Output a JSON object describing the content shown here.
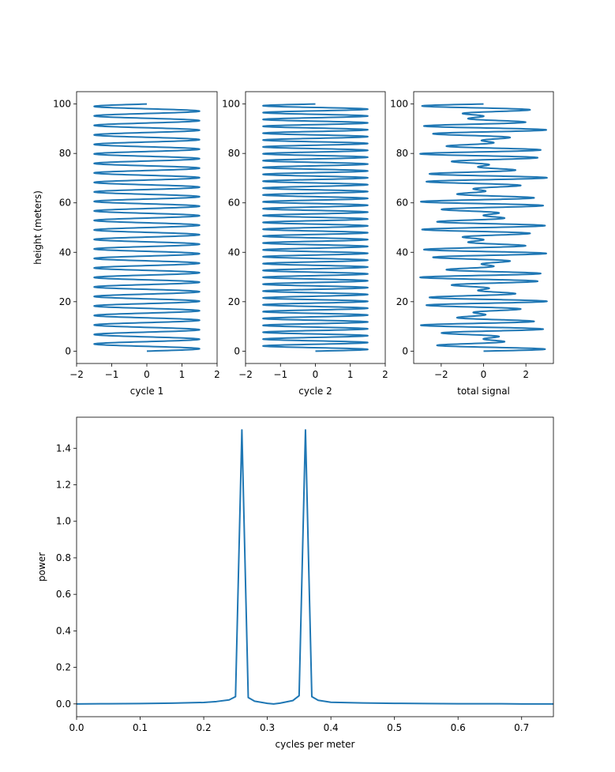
{
  "colors": {
    "line": "#1f77b4",
    "axes": "#000000",
    "background": "#ffffff"
  },
  "chart_data": [
    {
      "type": "line",
      "orientation": "vertical",
      "xlabel": "cycle 1",
      "ylabel": "height (meters)",
      "xlim": [
        -2,
        2
      ],
      "ylim": [
        -5,
        105
      ],
      "xticks": [
        -2,
        -1,
        0,
        1,
        2
      ],
      "yticks": [
        0,
        20,
        40,
        60,
        80,
        100
      ],
      "signal": {
        "amplitude": 1.5,
        "frequency_cycles_per_meter": 0.26,
        "phase": "sine"
      },
      "height_range": [
        0,
        100
      ]
    },
    {
      "type": "line",
      "orientation": "vertical",
      "xlabel": "cycle 2",
      "ylabel": "",
      "xlim": [
        -2,
        2
      ],
      "ylim": [
        -5,
        105
      ],
      "xticks": [
        -2,
        -1,
        0,
        1,
        2
      ],
      "yticks": [
        0,
        20,
        40,
        60,
        80,
        100
      ],
      "signal": {
        "amplitude": 1.5,
        "frequency_cycles_per_meter": 0.36,
        "phase": "sine"
      },
      "height_range": [
        0,
        100
      ]
    },
    {
      "type": "line",
      "orientation": "vertical",
      "xlabel": "total signal",
      "ylabel": "",
      "xlim": [
        -3.3,
        3.3
      ],
      "ylim": [
        -5,
        105
      ],
      "xticks": [
        -2,
        0,
        2
      ],
      "yticks": [
        0,
        20,
        40,
        60,
        80,
        100
      ],
      "signal": {
        "components": [
          0.26,
          0.36
        ],
        "amplitude": 1.5
      },
      "height_range": [
        0,
        100
      ]
    },
    {
      "type": "line",
      "xlabel": "cycles per meter",
      "ylabel": "power",
      "xlim": [
        0,
        0.75
      ],
      "ylim": [
        -0.07,
        1.57
      ],
      "xticks": [
        0.0,
        0.1,
        0.2,
        0.3,
        0.4,
        0.5,
        0.6,
        0.7
      ],
      "yticks": [
        0.0,
        0.2,
        0.4,
        0.6,
        0.8,
        1.0,
        1.2,
        1.4
      ],
      "x": [
        0.0,
        0.05,
        0.1,
        0.15,
        0.2,
        0.22,
        0.24,
        0.25,
        0.26,
        0.27,
        0.28,
        0.3,
        0.31,
        0.32,
        0.34,
        0.35,
        0.36,
        0.37,
        0.38,
        0.4,
        0.45,
        0.5,
        0.55,
        0.6,
        0.65,
        0.7,
        0.75
      ],
      "y": [
        0.0,
        0.001,
        0.002,
        0.004,
        0.008,
        0.013,
        0.022,
        0.04,
        1.5,
        0.035,
        0.015,
        0.003,
        0.0,
        0.004,
        0.018,
        0.045,
        1.5,
        0.04,
        0.02,
        0.009,
        0.005,
        0.003,
        0.002,
        0.001,
        0.001,
        0.0,
        0.0
      ]
    }
  ]
}
